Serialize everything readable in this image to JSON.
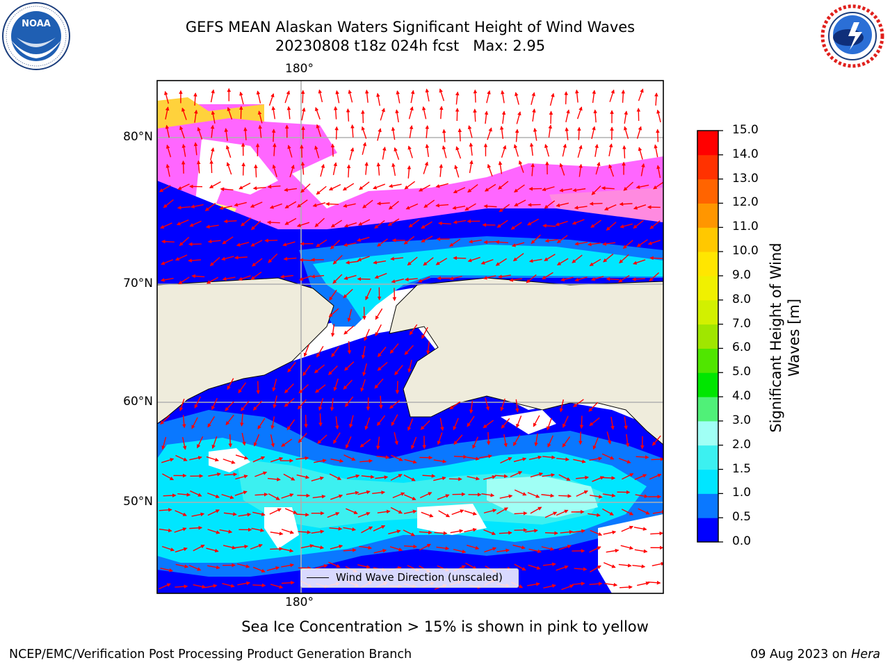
{
  "header": {
    "title_line1": "GEFS MEAN Alaskan Waters Significant Height of Wind Waves",
    "title_line2": "20230808 t18z 024h fcst   Max: 2.95"
  },
  "logos": {
    "noaa": {
      "text": "NOAA",
      "ring_text": "NATIONAL OCEANIC AND ATMOSPHERIC ADMINISTRATION · U.S. DEPARTMENT OF COMMERCE"
    },
    "nws": {
      "ring_text": "NATIONAL WEATHER SERVICE"
    }
  },
  "map": {
    "lon_label_top": "180°",
    "lon_label_bottom": "180°",
    "lat_labels": [
      {
        "text": "80°N"
      },
      {
        "text": "70°N"
      },
      {
        "text": "60°N"
      },
      {
        "text": "50°N"
      }
    ],
    "legend_label": "Wind Wave Direction (unscaled)",
    "colors": {
      "land": "#efecdc",
      "grid": "#b0b0b0",
      "arrow": "#ff0000"
    }
  },
  "colorbar": {
    "label": "Significant Height of Wind Waves [m]",
    "label_line1": "Significant Height of Wind",
    "label_line2": "Waves [m]",
    "ticks": [
      "0.0",
      "0.5",
      "1.0",
      "1.5",
      "2.0",
      "3.0",
      "4.0",
      "5.0",
      "6.0",
      "7.0",
      "8.0",
      "9.0",
      "10.0",
      "11.0",
      "12.0",
      "13.0",
      "14.0",
      "15.0"
    ],
    "colors": [
      "#0000ff",
      "#0a78ff",
      "#00e6ff",
      "#3cf0f0",
      "#a0fff5",
      "#50f078",
      "#00e600",
      "#50e600",
      "#a0e600",
      "#d2f000",
      "#f0f000",
      "#ffe600",
      "#ffc800",
      "#ff9600",
      "#ff6400",
      "#ff3200",
      "#ff0000"
    ]
  },
  "notes": {
    "ice_note": "Sea Ice Concentration > 15% is shown in pink to yellow",
    "footer_left": "NCEP/EMC/Verification Post Processing Product Generation Branch",
    "footer_right_date": "09 Aug 2023 on ",
    "footer_right_host": "Hera"
  }
}
